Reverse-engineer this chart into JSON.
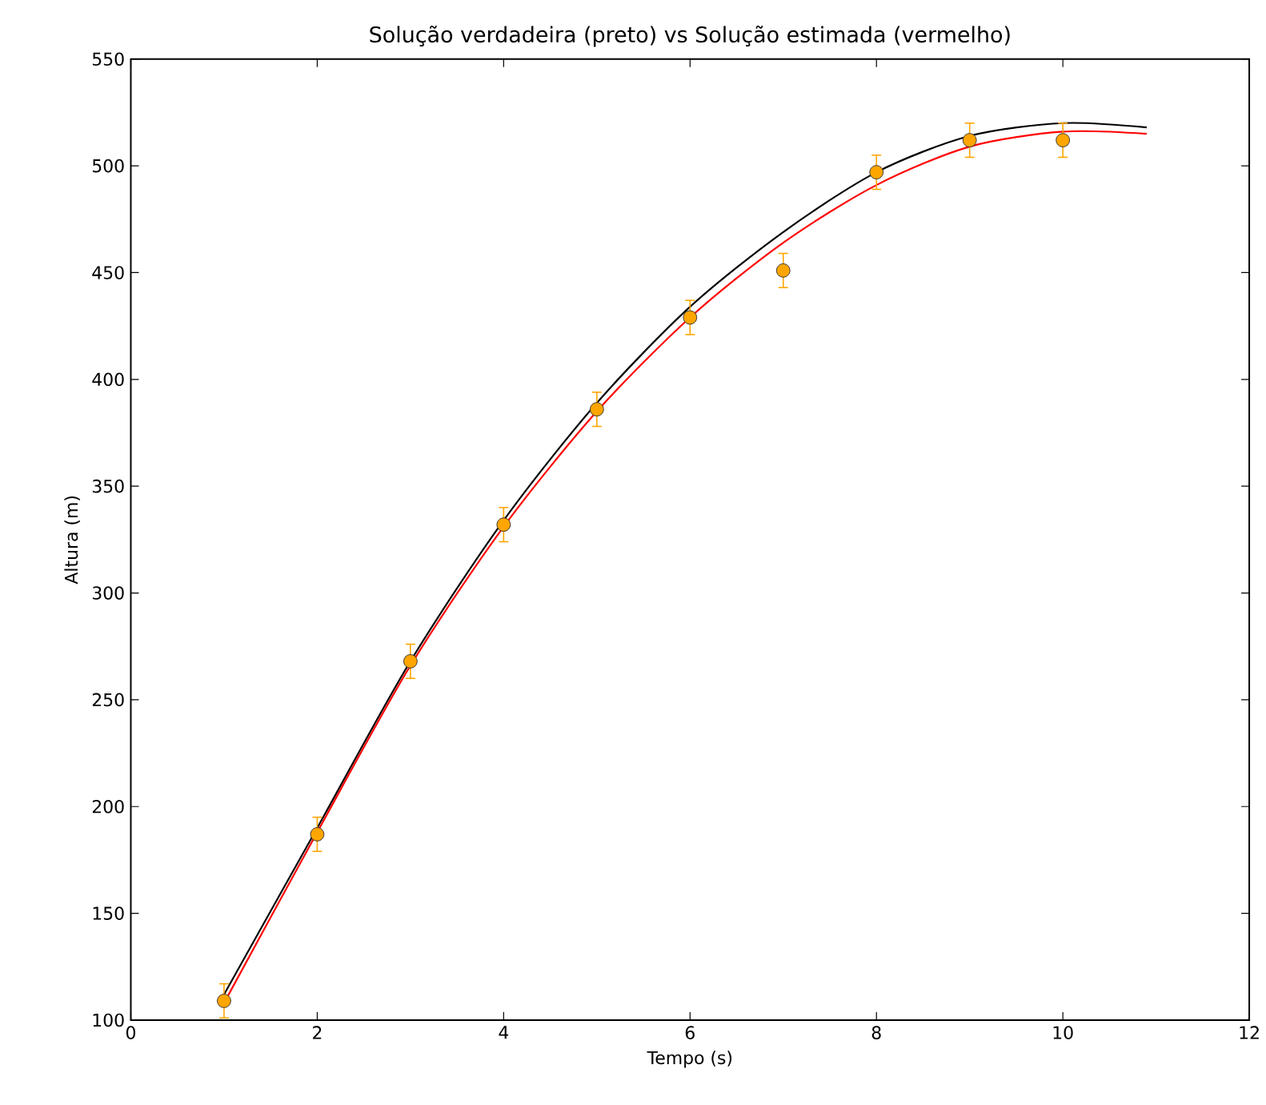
{
  "chart_data": {
    "type": "line",
    "title": "Solução verdadeira (preto) vs Solução estimada (vermelho)",
    "xlabel": "Tempo (s)",
    "ylabel": "Altura (m)",
    "xlim": [
      0,
      12
    ],
    "ylim": [
      100,
      550
    ],
    "xticks": [
      0,
      2,
      4,
      6,
      8,
      10,
      12
    ],
    "yticks": [
      100,
      150,
      200,
      250,
      300,
      350,
      400,
      450,
      500,
      550
    ],
    "grid": false,
    "series": [
      {
        "color": "#000000",
        "marker": "none",
        "x": [
          1,
          2,
          3,
          4,
          5,
          6,
          7,
          8,
          9,
          10,
          10.9
        ],
        "values": [
          112,
          190,
          268,
          334,
          389,
          434,
          469,
          497,
          514,
          520,
          518
        ]
      },
      {
        "color": "#ff0000",
        "marker": "none",
        "x": [
          1,
          2,
          3,
          4,
          5,
          6,
          7,
          8,
          9,
          10,
          10.9
        ],
        "values": [
          108,
          188,
          266,
          331,
          385,
          429,
          464,
          491,
          509,
          516,
          515
        ]
      },
      {
        "type": "scatter",
        "color": "#ffa500",
        "marker": "circle",
        "x": [
          1,
          2,
          3,
          4,
          5,
          6,
          7,
          8,
          9,
          10
        ],
        "values": [
          109,
          187,
          268,
          332,
          386,
          429,
          451,
          497,
          512,
          512
        ],
        "errors": [
          8,
          8,
          8,
          8,
          8,
          8,
          8,
          8,
          8,
          8
        ]
      }
    ]
  }
}
